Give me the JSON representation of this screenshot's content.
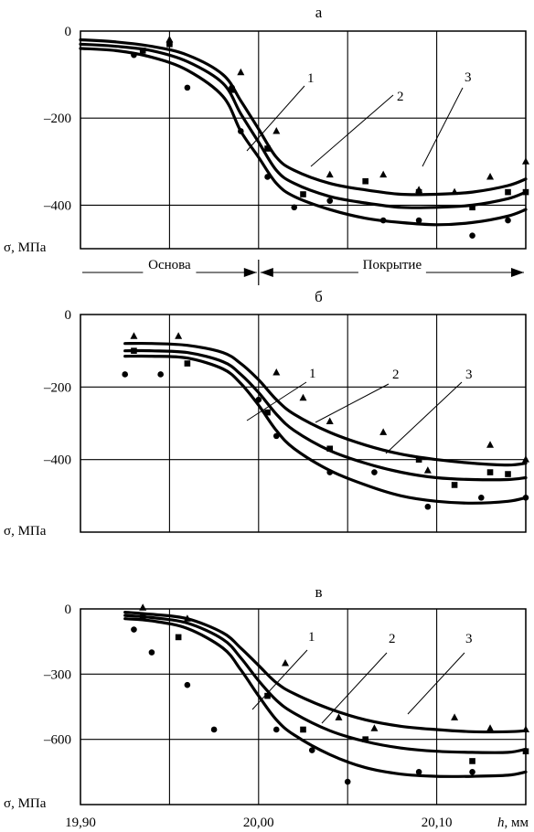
{
  "chart_data": [
    {
      "type": "line",
      "title": "а",
      "ylabel": "σ, МПа",
      "xlabel": "",
      "xlim": [
        19.9,
        20.15
      ],
      "ylim": [
        -500,
        0
      ],
      "yticks": [
        0,
        -200,
        -400
      ],
      "ytick_labels": [
        "0",
        "–200",
        "–400"
      ],
      "grid": true,
      "regions": [
        {
          "label": "Основа",
          "from": 19.9,
          "to": 20.0
        },
        {
          "label": "Покрытие",
          "from": 20.0,
          "to": 20.15
        }
      ],
      "series": [
        {
          "name": "1",
          "marker": "circle",
          "x": [
            19.9,
            19.92,
            19.94,
            19.96,
            19.98,
            19.99,
            20.0,
            20.01,
            20.02,
            20.04,
            20.06,
            20.08,
            20.1,
            20.12,
            20.14,
            20.15
          ],
          "y": [
            -40,
            -45,
            -60,
            -90,
            -150,
            -230,
            -290,
            -350,
            -380,
            -410,
            -430,
            -440,
            -445,
            -440,
            -425,
            -410
          ],
          "points_x": [
            19.93,
            19.95,
            19.96,
            19.985,
            19.99,
            20.005,
            20.02,
            20.04,
            20.07,
            20.09,
            20.12,
            20.14
          ],
          "points_y": [
            -55,
            -30,
            -130,
            -130,
            -230,
            -335,
            -405,
            -390,
            -435,
            -435,
            -470,
            -435
          ]
        },
        {
          "name": "2",
          "marker": "square",
          "x": [
            19.9,
            19.92,
            19.94,
            19.96,
            19.98,
            19.99,
            20.0,
            20.01,
            20.02,
            20.04,
            20.06,
            20.08,
            20.1,
            20.12,
            20.14,
            20.15
          ],
          "y": [
            -30,
            -35,
            -45,
            -70,
            -120,
            -190,
            -255,
            -320,
            -350,
            -380,
            -395,
            -405,
            -405,
            -400,
            -385,
            -370
          ],
          "points_x": [
            19.935,
            19.95,
            19.985,
            20.005,
            20.025,
            20.06,
            20.09,
            20.12,
            20.14,
            20.15
          ],
          "points_y": [
            -45,
            -30,
            -135,
            -270,
            -375,
            -345,
            -370,
            -405,
            -370,
            -370
          ]
        },
        {
          "name": "3",
          "marker": "triangle",
          "x": [
            19.9,
            19.92,
            19.94,
            19.96,
            19.98,
            19.99,
            20.0,
            20.01,
            20.02,
            20.04,
            20.06,
            20.08,
            20.1,
            20.12,
            20.14,
            20.15
          ],
          "y": [
            -20,
            -25,
            -35,
            -55,
            -100,
            -160,
            -225,
            -290,
            -320,
            -350,
            -365,
            -375,
            -375,
            -370,
            -355,
            -340
          ],
          "points_x": [
            19.95,
            19.99,
            20.01,
            20.04,
            20.07,
            20.09,
            20.11,
            20.13,
            20.15
          ],
          "points_y": [
            -20,
            -95,
            -230,
            -330,
            -330,
            -365,
            -370,
            -335,
            -300
          ]
        }
      ]
    },
    {
      "type": "line",
      "title": "б",
      "ylabel": "σ, МПа",
      "xlabel": "",
      "xlim": [
        19.9,
        20.15
      ],
      "ylim": [
        -600,
        0
      ],
      "yticks": [
        0,
        -200,
        -400
      ],
      "ytick_labels": [
        "0",
        "–200",
        "–400"
      ],
      "grid": true,
      "series": [
        {
          "name": "1",
          "marker": "circle",
          "x": [
            19.925,
            19.94,
            19.96,
            19.98,
            19.99,
            20.0,
            20.01,
            20.02,
            20.04,
            20.06,
            20.08,
            20.1,
            20.12,
            20.14,
            20.15
          ],
          "y": [
            -115,
            -115,
            -120,
            -150,
            -190,
            -250,
            -320,
            -370,
            -430,
            -470,
            -500,
            -515,
            -520,
            -515,
            -505
          ],
          "points_x": [
            19.925,
            19.945,
            20.0,
            20.01,
            20.04,
            20.065,
            20.095,
            20.125,
            20.15
          ],
          "points_y": [
            -165,
            -165,
            -235,
            -335,
            -435,
            -435,
            -530,
            -505,
            -505
          ]
        },
        {
          "name": "2",
          "marker": "square",
          "x": [
            19.925,
            19.94,
            19.96,
            19.98,
            19.99,
            20.0,
            20.01,
            20.02,
            20.04,
            20.06,
            20.08,
            20.1,
            20.12,
            20.14,
            20.15
          ],
          "y": [
            -100,
            -100,
            -105,
            -130,
            -165,
            -215,
            -275,
            -320,
            -375,
            -410,
            -435,
            -450,
            -455,
            -455,
            -450
          ],
          "points_x": [
            19.93,
            19.96,
            20.005,
            20.04,
            20.09,
            20.11,
            20.13,
            20.14
          ],
          "points_y": [
            -100,
            -135,
            -270,
            -370,
            -400,
            -470,
            -435,
            -440
          ]
        },
        {
          "name": "3",
          "marker": "triangle",
          "x": [
            19.925,
            19.94,
            19.96,
            19.98,
            19.99,
            20.0,
            20.01,
            20.02,
            20.04,
            20.06,
            20.08,
            20.1,
            20.12,
            20.14,
            20.15
          ],
          "y": [
            -80,
            -80,
            -85,
            -105,
            -135,
            -180,
            -235,
            -275,
            -325,
            -360,
            -385,
            -400,
            -410,
            -415,
            -410
          ],
          "points_x": [
            19.93,
            19.955,
            20.01,
            20.025,
            20.04,
            20.07,
            20.095,
            20.13,
            20.15
          ],
          "points_y": [
            -60,
            -60,
            -160,
            -230,
            -295,
            -325,
            -430,
            -360,
            -400
          ]
        }
      ]
    },
    {
      "type": "line",
      "title": "в",
      "ylabel": "σ, МПа",
      "xlabel": "h, мм",
      "xlim": [
        19.9,
        20.15
      ],
      "xticks": [
        19.9,
        20.0,
        20.1
      ],
      "xtick_labels": [
        "19,90",
        "20,00",
        "20,10"
      ],
      "ylim": [
        -900,
        0
      ],
      "yticks": [
        0,
        -300,
        -600
      ],
      "ytick_labels": [
        "0",
        "–300",
        "–600"
      ],
      "grid": true,
      "series": [
        {
          "name": "1",
          "marker": "circle",
          "x": [
            19.925,
            19.94,
            19.96,
            19.98,
            19.99,
            20.0,
            20.01,
            20.02,
            20.04,
            20.06,
            20.08,
            20.1,
            20.12,
            20.14,
            20.15
          ],
          "y": [
            -45,
            -55,
            -90,
            -180,
            -280,
            -400,
            -510,
            -580,
            -670,
            -730,
            -760,
            -770,
            -770,
            -765,
            -750
          ],
          "points_x": [
            19.93,
            19.94,
            19.96,
            19.975,
            20.01,
            20.03,
            20.05,
            20.09,
            20.12
          ],
          "points_y": [
            -95,
            -200,
            -350,
            -555,
            -555,
            -650,
            -795,
            -750,
            -750
          ]
        },
        {
          "name": "2",
          "marker": "square",
          "x": [
            19.925,
            19.94,
            19.96,
            19.98,
            19.99,
            20.0,
            20.01,
            20.02,
            20.04,
            20.06,
            20.08,
            20.1,
            20.12,
            20.14,
            20.15
          ],
          "y": [
            -30,
            -40,
            -65,
            -140,
            -225,
            -330,
            -420,
            -480,
            -560,
            -610,
            -640,
            -655,
            -660,
            -660,
            -645
          ],
          "points_x": [
            19.935,
            19.955,
            20.005,
            20.025,
            20.06,
            20.12,
            20.15
          ],
          "points_y": [
            -40,
            -130,
            -400,
            -555,
            -600,
            -700,
            -655
          ]
        },
        {
          "name": "3",
          "marker": "triangle",
          "x": [
            19.925,
            19.94,
            19.96,
            19.98,
            19.99,
            20.0,
            20.01,
            20.02,
            20.04,
            20.06,
            20.08,
            20.1,
            20.12,
            20.14,
            20.15
          ],
          "y": [
            -15,
            -25,
            -45,
            -110,
            -180,
            -260,
            -340,
            -390,
            -460,
            -510,
            -540,
            -555,
            -565,
            -565,
            -560
          ],
          "points_x": [
            19.935,
            19.96,
            20.015,
            20.045,
            20.065,
            20.11,
            20.13,
            20.15
          ],
          "points_y": [
            5,
            -45,
            -250,
            -500,
            -550,
            -500,
            -550,
            -555
          ]
        }
      ]
    }
  ]
}
